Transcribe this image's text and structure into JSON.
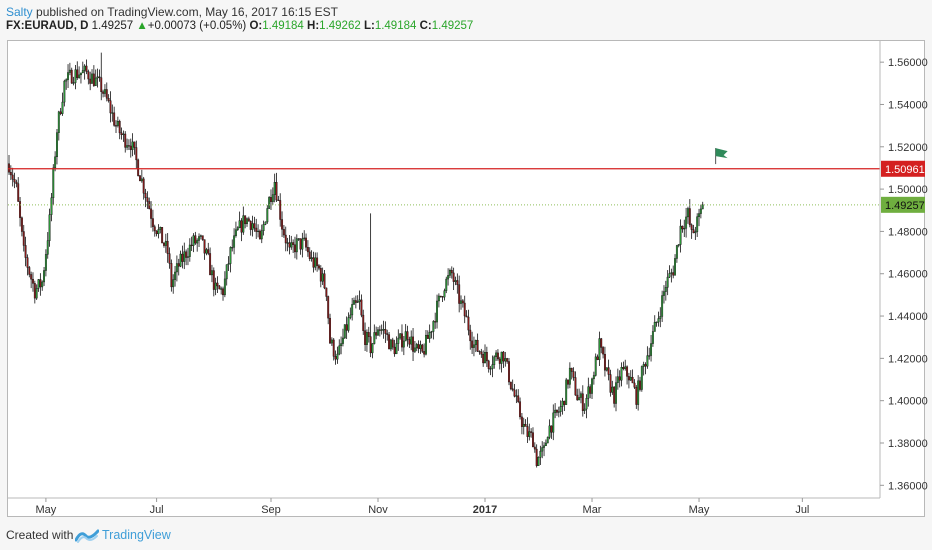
{
  "header": {
    "author": "Salty",
    "published_text": "published on TradingView.com, May 16, 2017 16:15 EST",
    "symbol": "FX:EURAUD, D",
    "last": "1.49257",
    "change_arrow": "▲",
    "change": "+0.00073 (+0.05%)",
    "o_label": "O:",
    "o_value": "1.49184",
    "h_label": "H:",
    "h_value": "1.49262",
    "l_label": "L:",
    "l_value": "1.49184",
    "c_label": "C:",
    "c_value": "1.49257"
  },
  "footer": {
    "created_with": "Created with",
    "brand": "TradingView"
  },
  "colors": {
    "up": "#2e9b3a",
    "down": "#8b1a1a",
    "wick": "#111111",
    "resistance": "#d42020",
    "last_price": "#6fae3f",
    "accent": "#2f8fd0"
  },
  "chart_data": {
    "type": "candlestick",
    "symbol": "FX:EURAUD",
    "interval": "D",
    "x_ticks": [
      "May",
      "Jul",
      "Sep",
      "Nov",
      "2017",
      "Mar",
      "May",
      "Jul"
    ],
    "y_ticks": [
      "1.56000",
      "1.54000",
      "1.52000",
      "1.50000",
      "1.48000",
      "1.46000",
      "1.44000",
      "1.42000",
      "1.40000",
      "1.38000",
      "1.36000"
    ],
    "ylim": [
      1.354,
      1.57
    ],
    "xlim_days": [
      0,
      470
    ],
    "resistance_level": 1.50961,
    "resistance_label": "1.50961",
    "last_price": 1.49257,
    "last_price_label": "1.49257",
    "flag_date_index": 383,
    "flag_price": 1.5175,
    "path": [
      [
        0,
        1.512
      ],
      [
        4,
        1.5
      ],
      [
        8,
        1.47
      ],
      [
        14,
        1.452
      ],
      [
        18,
        1.456
      ],
      [
        22,
        1.485
      ],
      [
        26,
        1.528
      ],
      [
        30,
        1.55
      ],
      [
        34,
        1.554
      ],
      [
        38,
        1.555
      ],
      [
        42,
        1.555
      ],
      [
        46,
        1.552
      ],
      [
        50,
        1.548
      ],
      [
        54,
        1.54
      ],
      [
        58,
        1.53
      ],
      [
        62,
        1.524
      ],
      [
        66,
        1.522
      ],
      [
        70,
        1.51
      ],
      [
        74,
        1.498
      ],
      [
        78,
        1.485
      ],
      [
        82,
        1.478
      ],
      [
        86,
        1.47
      ],
      [
        88,
        1.455
      ],
      [
        92,
        1.464
      ],
      [
        96,
        1.47
      ],
      [
        100,
        1.475
      ],
      [
        104,
        1.475
      ],
      [
        108,
        1.466
      ],
      [
        112,
        1.452
      ],
      [
        116,
        1.452
      ],
      [
        120,
        1.47
      ],
      [
        124,
        1.48
      ],
      [
        128,
        1.486
      ],
      [
        132,
        1.484
      ],
      [
        136,
        1.474
      ],
      [
        140,
        1.492
      ],
      [
        144,
        1.504
      ],
      [
        148,
        1.483
      ],
      [
        152,
        1.47
      ],
      [
        156,
        1.474
      ],
      [
        160,
        1.474
      ],
      [
        164,
        1.466
      ],
      [
        168,
        1.462
      ],
      [
        172,
        1.452
      ],
      [
        174,
        1.428
      ],
      [
        178,
        1.42
      ],
      [
        182,
        1.432
      ],
      [
        186,
        1.443
      ],
      [
        190,
        1.446
      ],
      [
        192,
        1.432
      ],
      [
        196,
        1.425
      ],
      [
        200,
        1.435
      ],
      [
        204,
        1.432
      ],
      [
        208,
        1.424
      ],
      [
        212,
        1.428
      ],
      [
        216,
        1.432
      ],
      [
        220,
        1.424
      ],
      [
        224,
        1.422
      ],
      [
        228,
        1.432
      ],
      [
        232,
        1.444
      ],
      [
        236,
        1.455
      ],
      [
        240,
        1.46
      ],
      [
        244,
        1.448
      ],
      [
        248,
        1.438
      ],
      [
        252,
        1.426
      ],
      [
        256,
        1.423
      ],
      [
        260,
        1.418
      ],
      [
        264,
        1.421
      ],
      [
        268,
        1.422
      ],
      [
        272,
        1.408
      ],
      [
        276,
        1.396
      ],
      [
        280,
        1.385
      ],
      [
        284,
        1.382
      ],
      [
        286,
        1.372
      ],
      [
        290,
        1.376
      ],
      [
        292,
        1.386
      ],
      [
        296,
        1.392
      ],
      [
        300,
        1.398
      ],
      [
        304,
        1.414
      ],
      [
        308,
        1.402
      ],
      [
        312,
        1.398
      ],
      [
        316,
        1.41
      ],
      [
        320,
        1.426
      ],
      [
        324,
        1.412
      ],
      [
        328,
        1.402
      ],
      [
        332,
        1.414
      ],
      [
        336,
        1.412
      ],
      [
        340,
        1.402
      ],
      [
        344,
        1.416
      ],
      [
        348,
        1.428
      ],
      [
        352,
        1.44
      ],
      [
        356,
        1.455
      ],
      [
        360,
        1.462
      ],
      [
        364,
        1.482
      ],
      [
        368,
        1.488
      ],
      [
        370,
        1.478
      ],
      [
        374,
        1.486
      ],
      [
        376,
        1.4926
      ]
    ]
  }
}
